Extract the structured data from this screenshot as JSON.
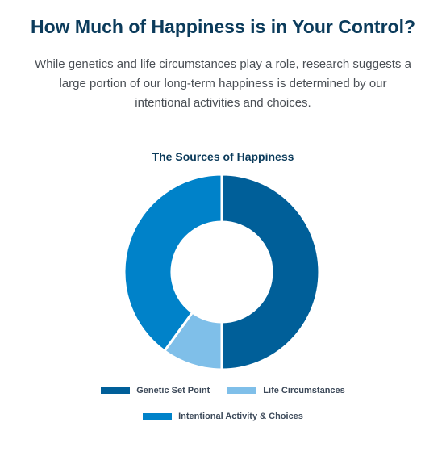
{
  "header": {
    "title": "How Much of Happiness is in Your Control?",
    "intro_lines": [
      "While genetics and life circumstances play a role, research suggests a",
      "large portion of our long-term happiness is determined by our",
      "intentional activities and choices."
    ]
  },
  "chart_data": {
    "type": "pie",
    "title": "The Sources of Happiness",
    "donut": true,
    "legend_position": "bottom",
    "categories": [
      "Genetic Set Point",
      "Life Circumstances",
      "Intentional Activity & Choices"
    ],
    "values": [
      50,
      10,
      40
    ],
    "colors": [
      "#005f99",
      "#7fbfe9",
      "#0082c9"
    ]
  }
}
